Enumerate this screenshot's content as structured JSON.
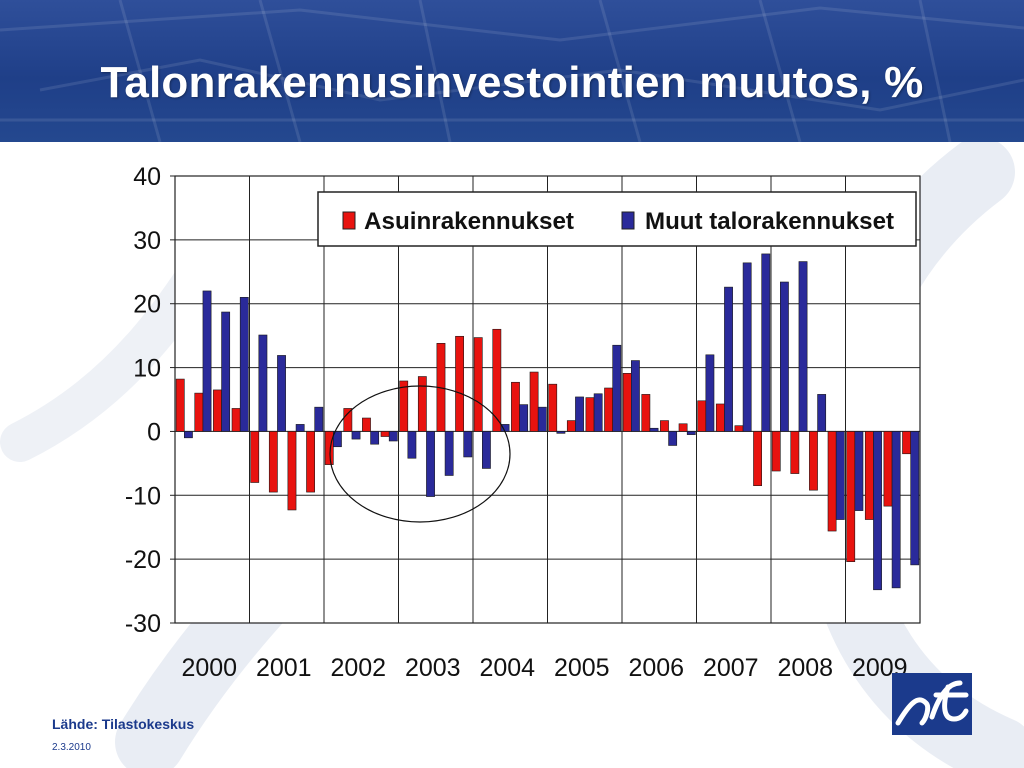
{
  "slide": {
    "title": "Talonrakennusinvestointien muutos, %",
    "source": "Lähde: Tilastokeskus",
    "date": "2.3.2010"
  },
  "colors": {
    "banner": "#24488f",
    "series1": "#e8130f",
    "series2": "#2a2a9a",
    "logo": "#1b3a8c"
  },
  "chart_data": {
    "type": "bar",
    "title": "",
    "xlabel": "",
    "ylabel": "",
    "ylim": [
      -30,
      40
    ],
    "yticks": [
      40,
      30,
      20,
      10,
      0,
      -10,
      -20,
      -30
    ],
    "grid": true,
    "legend_position": "top-right",
    "year_labels": [
      "2000",
      "2001",
      "2002",
      "2003",
      "2004",
      "2005",
      "2006",
      "2007",
      "2008",
      "2009"
    ],
    "quarters_per_year": 4,
    "series": [
      {
        "name": "Asuinrakennukset",
        "color": "#e8130f",
        "values": [
          8.2,
          6.0,
          6.5,
          3.6,
          -8.0,
          -9.5,
          -12.3,
          -9.5,
          -5.2,
          3.6,
          2.1,
          -0.8,
          7.9,
          8.6,
          13.8,
          14.9,
          14.7,
          16.0,
          7.7,
          9.3,
          7.4,
          1.7,
          5.3,
          6.8,
          9.1,
          5.8,
          1.7,
          1.2,
          4.8,
          4.3,
          0.9,
          -8.5,
          -6.2,
          -6.6,
          -9.2,
          -15.6,
          -20.4,
          -13.8,
          -11.7,
          -3.5
        ]
      },
      {
        "name": "Muut talorakennukset",
        "color": "#2a2a9a",
        "values": [
          -1.0,
          22.0,
          18.7,
          21.0,
          15.1,
          11.9,
          1.1,
          3.8,
          -2.4,
          -1.2,
          -2.0,
          -1.5,
          -4.2,
          -10.2,
          -6.9,
          -4.0,
          -5.8,
          1.1,
          4.2,
          3.8,
          -0.3,
          5.4,
          5.9,
          13.5,
          11.1,
          0.5,
          -2.2,
          -0.5,
          12.0,
          22.6,
          26.4,
          27.8,
          23.4,
          26.6,
          5.8,
          -13.8,
          -12.4,
          -24.8,
          -24.5,
          -20.9
        ]
      }
    ]
  }
}
